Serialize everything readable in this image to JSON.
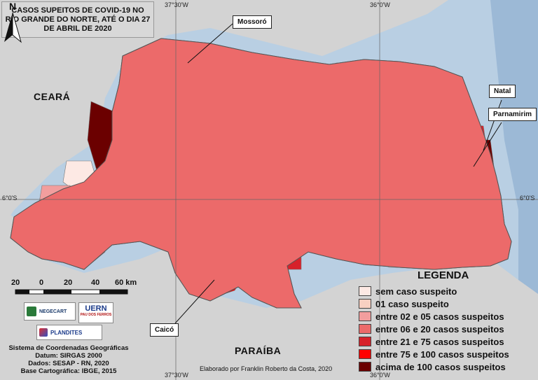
{
  "title": "CASOS SUPEITOS DE COVID-19 NO RIO GRANDE DO NORTE, ATÉ O DIA 27 DE ABRIL DE 2020",
  "graticule": {
    "top_left": "37°30'W",
    "top_right": "36°0'W",
    "bottom_left": "37°30'W",
    "bottom_right": "36°0'W",
    "left_lat": "6°0'S",
    "right_lat": "6°0'S"
  },
  "neighbors": {
    "west": "CEARÁ",
    "south": "PARAÍBA"
  },
  "north_arrow": "N",
  "cities": {
    "mossoro": "Mossoró",
    "natal": "Natal",
    "parnamirim": "Parnamirim",
    "caico": "Caicó"
  },
  "legend": {
    "title": "LEGENDA",
    "items": [
      {
        "label": "sem caso suspeito",
        "color": "#fde9e4"
      },
      {
        "label": "01 caso suspeito",
        "color": "#f8d0c2"
      },
      {
        "label": "entre 02 e 05 casos suspeitos",
        "color": "#f29e9e"
      },
      {
        "label": "entre 06 e 20 casos suspeitos",
        "color": "#ec6a6a"
      },
      {
        "label": "entre 21 e 75 casos suspeitos",
        "color": "#d7212a"
      },
      {
        "label": "entre 75 e 100 casos suspeitos",
        "color": "#ff0000"
      },
      {
        "label": "acima de 100 casos suspeitos",
        "color": "#6b0000"
      }
    ]
  },
  "scale_bar": {
    "ticks": [
      "20",
      "0",
      "20",
      "40",
      "60 km"
    ]
  },
  "logos": {
    "negecart": "NEGECART",
    "uern": "UERN",
    "uern_sub": "PAU DOS FERROS",
    "plandites": "PLANDITES"
  },
  "credits": [
    "Sistema de Coordenadas Geográficas",
    "Datum: SIRGAS 2000",
    "Dados: SESAP - RN, 2020",
    "Base Cartográfica: IBGE, 2015"
  ],
  "author": "Elaborado por Franklin Roberto da Costa, 2020",
  "colors": {
    "sea": "#b9cfe3",
    "land_outside": "#d3d3d3",
    "border": "#555555"
  }
}
